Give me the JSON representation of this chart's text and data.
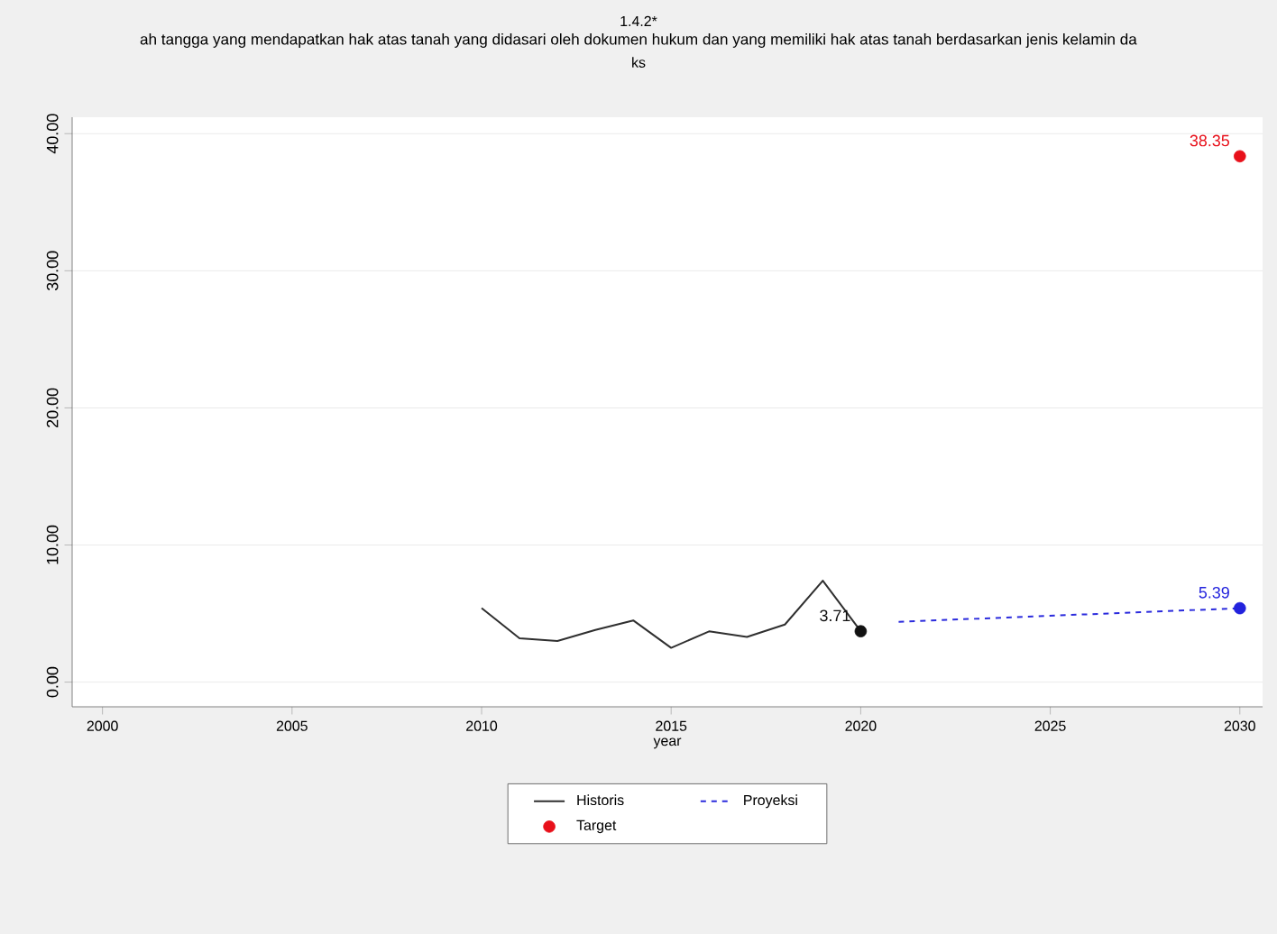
{
  "chart_data": {
    "type": "line",
    "title": "1.4.2*",
    "subtitle": "ah tangga yang mendapatkan hak atas tanah yang didasari oleh dokumen hukum dan yang memiliki hak atas tanah berdasarkan jenis kelamin da",
    "annotations": [
      "ks"
    ],
    "xlabel": "year",
    "xlim": [
      1999.2,
      2030.6
    ],
    "xticks": [
      2000,
      2005,
      2010,
      2015,
      2020,
      2025,
      2030
    ],
    "ylim": [
      -1.8,
      41.2
    ],
    "yticks": [
      {
        "value": 0,
        "label": "0.00"
      },
      {
        "value": 10,
        "label": "10.00"
      },
      {
        "value": 20,
        "label": "20.00"
      },
      {
        "value": 30,
        "label": "30.00"
      },
      {
        "value": 40,
        "label": "40.00"
      }
    ],
    "grid": "y",
    "legend": "bottom",
    "series": [
      {
        "name": "Historis",
        "color": "#2f2f2f",
        "line_style": "solid",
        "marker": "none",
        "x": [
          2010,
          2011,
          2012,
          2013,
          2014,
          2015,
          2016,
          2017,
          2018,
          2019,
          2020
        ],
        "values": [
          5.4,
          3.2,
          3.0,
          3.8,
          4.5,
          2.5,
          3.7,
          3.3,
          4.2,
          7.4,
          3.71
        ]
      },
      {
        "name": "Proyeksi",
        "color": "#2b2bdd",
        "line_style": "dashed",
        "marker": "none",
        "x": [
          2021,
          2030
        ],
        "values": [
          4.4,
          5.39
        ]
      },
      {
        "type": "scatter",
        "color": "#111111",
        "marker": "circle",
        "x": [
          2020
        ],
        "values": [
          3.71
        ],
        "value_labels": [
          "3.71"
        ]
      },
      {
        "type": "scatter",
        "color": "#2222dd",
        "marker": "circle",
        "x": [
          2030
        ],
        "values": [
          5.39
        ],
        "value_labels": [
          "5.39"
        ]
      },
      {
        "name": "Target",
        "type": "scatter",
        "color": "#e8101a",
        "marker": "circle",
        "x": [
          2030
        ],
        "values": [
          38.35
        ],
        "value_labels": [
          "38.35"
        ]
      }
    ]
  }
}
